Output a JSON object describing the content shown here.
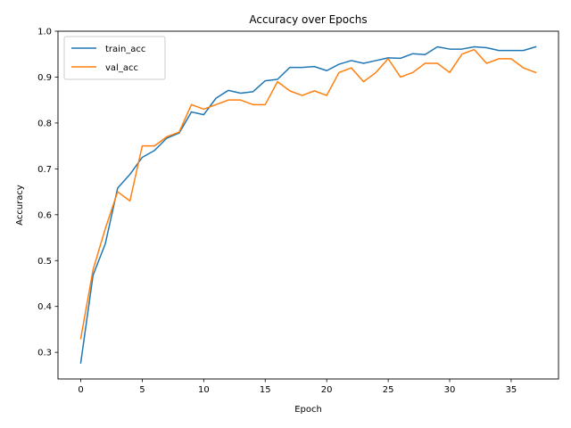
{
  "chart_data": {
    "type": "line",
    "title": "Accuracy over Epochs",
    "xlabel": "Epoch",
    "ylabel": "Accuracy",
    "xlim": [
      -1.85,
      38.85
    ],
    "ylim": [
      0.242,
      1.0
    ],
    "xticks": [
      0,
      5,
      10,
      15,
      20,
      25,
      30,
      35
    ],
    "yticks": [
      0.3,
      0.4,
      0.5,
      0.6,
      0.7,
      0.8,
      0.9,
      1.0
    ],
    "xtick_labels": [
      "0",
      "5",
      "10",
      "15",
      "20",
      "25",
      "30",
      "35"
    ],
    "ytick_labels": [
      "0.3",
      "0.4",
      "0.5",
      "0.6",
      "0.7",
      "0.8",
      "0.9",
      "1.0"
    ],
    "grid": false,
    "legend_position": "top-left",
    "x": [
      0,
      1,
      2,
      3,
      4,
      5,
      6,
      7,
      8,
      9,
      10,
      11,
      12,
      13,
      14,
      15,
      16,
      17,
      18,
      19,
      20,
      21,
      22,
      23,
      24,
      25,
      26,
      27,
      28,
      29,
      30,
      31,
      32,
      33,
      34,
      35,
      36,
      37
    ],
    "series": [
      {
        "name": "train_acc",
        "color": "#1f77b4",
        "values": [
          0.277,
          0.468,
          0.537,
          0.658,
          0.688,
          0.725,
          0.74,
          0.767,
          0.778,
          0.824,
          0.818,
          0.854,
          0.871,
          0.865,
          0.868,
          0.892,
          0.895,
          0.921,
          0.921,
          0.923,
          0.914,
          0.928,
          0.936,
          0.93,
          0.936,
          0.942,
          0.941,
          0.951,
          0.949,
          0.966,
          0.961,
          0.961,
          0.966,
          0.964,
          0.958,
          0.958,
          0.958,
          0.966
        ]
      },
      {
        "name": "val_acc",
        "color": "#ff7f0e",
        "values": [
          0.33,
          0.48,
          0.57,
          0.65,
          0.63,
          0.75,
          0.75,
          0.77,
          0.78,
          0.84,
          0.83,
          0.84,
          0.85,
          0.85,
          0.84,
          0.84,
          0.89,
          0.87,
          0.86,
          0.87,
          0.86,
          0.91,
          0.92,
          0.89,
          0.91,
          0.94,
          0.9,
          0.91,
          0.93,
          0.93,
          0.91,
          0.95,
          0.96,
          0.93,
          0.94,
          0.94,
          0.92,
          0.91
        ]
      }
    ]
  }
}
